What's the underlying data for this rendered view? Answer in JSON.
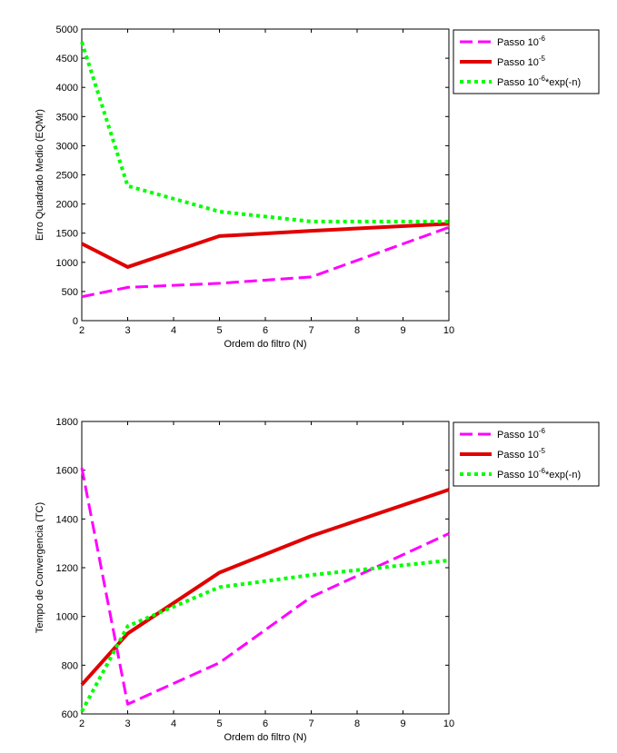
{
  "chart_data": [
    {
      "type": "line",
      "xlabel": "Ordem do filtro (N)",
      "ylabel": "Erro Quadrado Medio (EQMr)",
      "xlim": [
        2,
        10
      ],
      "ylim": [
        0,
        5000
      ],
      "xticks": [
        "2",
        "3",
        "4",
        "5",
        "6",
        "7",
        "8",
        "9",
        "10"
      ],
      "yticks": [
        "0",
        "500",
        "1000",
        "1500",
        "2000",
        "2500",
        "3000",
        "3500",
        "4000",
        "4500",
        "5000"
      ],
      "x": [
        2,
        3,
        5,
        7,
        10
      ],
      "legend_position": "outside-right-top",
      "grid": false,
      "series": [
        {
          "name": "Passo 10",
          "sup": "-6",
          "suffix": "",
          "color": "#ff00ff",
          "dash": "14,6",
          "width": 3,
          "values": [
            410,
            570,
            640,
            750,
            1600
          ]
        },
        {
          "name": "Passo 10",
          "sup": "-5",
          "suffix": "",
          "color": "#e00000",
          "dash": "",
          "width": 4,
          "values": [
            1320,
            920,
            1450,
            1540,
            1660
          ]
        },
        {
          "name": "Passo 10",
          "sup": "-6",
          "suffix": "*exp(-n)",
          "color": "#00ff00",
          "dash": "4,4",
          "width": 4,
          "values": [
            4780,
            2310,
            1870,
            1700,
            1700
          ]
        }
      ]
    },
    {
      "type": "line",
      "xlabel": "Ordem do filtro (N)",
      "ylabel": "Tempo de Convergencia (TC)",
      "xlim": [
        2,
        10
      ],
      "ylim": [
        600,
        1800
      ],
      "xticks": [
        "2",
        "3",
        "4",
        "5",
        "6",
        "7",
        "8",
        "9",
        "10"
      ],
      "yticks": [
        "600",
        "800",
        "1000",
        "1200",
        "1400",
        "1600",
        "1800"
      ],
      "x": [
        2,
        3,
        5,
        7,
        10
      ],
      "legend_position": "outside-right-top",
      "grid": false,
      "series": [
        {
          "name": "Passo 10",
          "sup": "-6",
          "suffix": "",
          "color": "#ff00ff",
          "dash": "14,6",
          "width": 3,
          "values": [
            1610,
            640,
            810,
            1080,
            1340
          ]
        },
        {
          "name": "Passo 10",
          "sup": "-5",
          "suffix": "",
          "color": "#e00000",
          "dash": "",
          "width": 4,
          "values": [
            720,
            930,
            1180,
            1330,
            1520
          ]
        },
        {
          "name": "Passo 10",
          "sup": "-6",
          "suffix": "*exp(-n)",
          "color": "#00ff00",
          "dash": "4,4",
          "width": 4,
          "values": [
            610,
            960,
            1120,
            1170,
            1230
          ]
        }
      ]
    }
  ]
}
